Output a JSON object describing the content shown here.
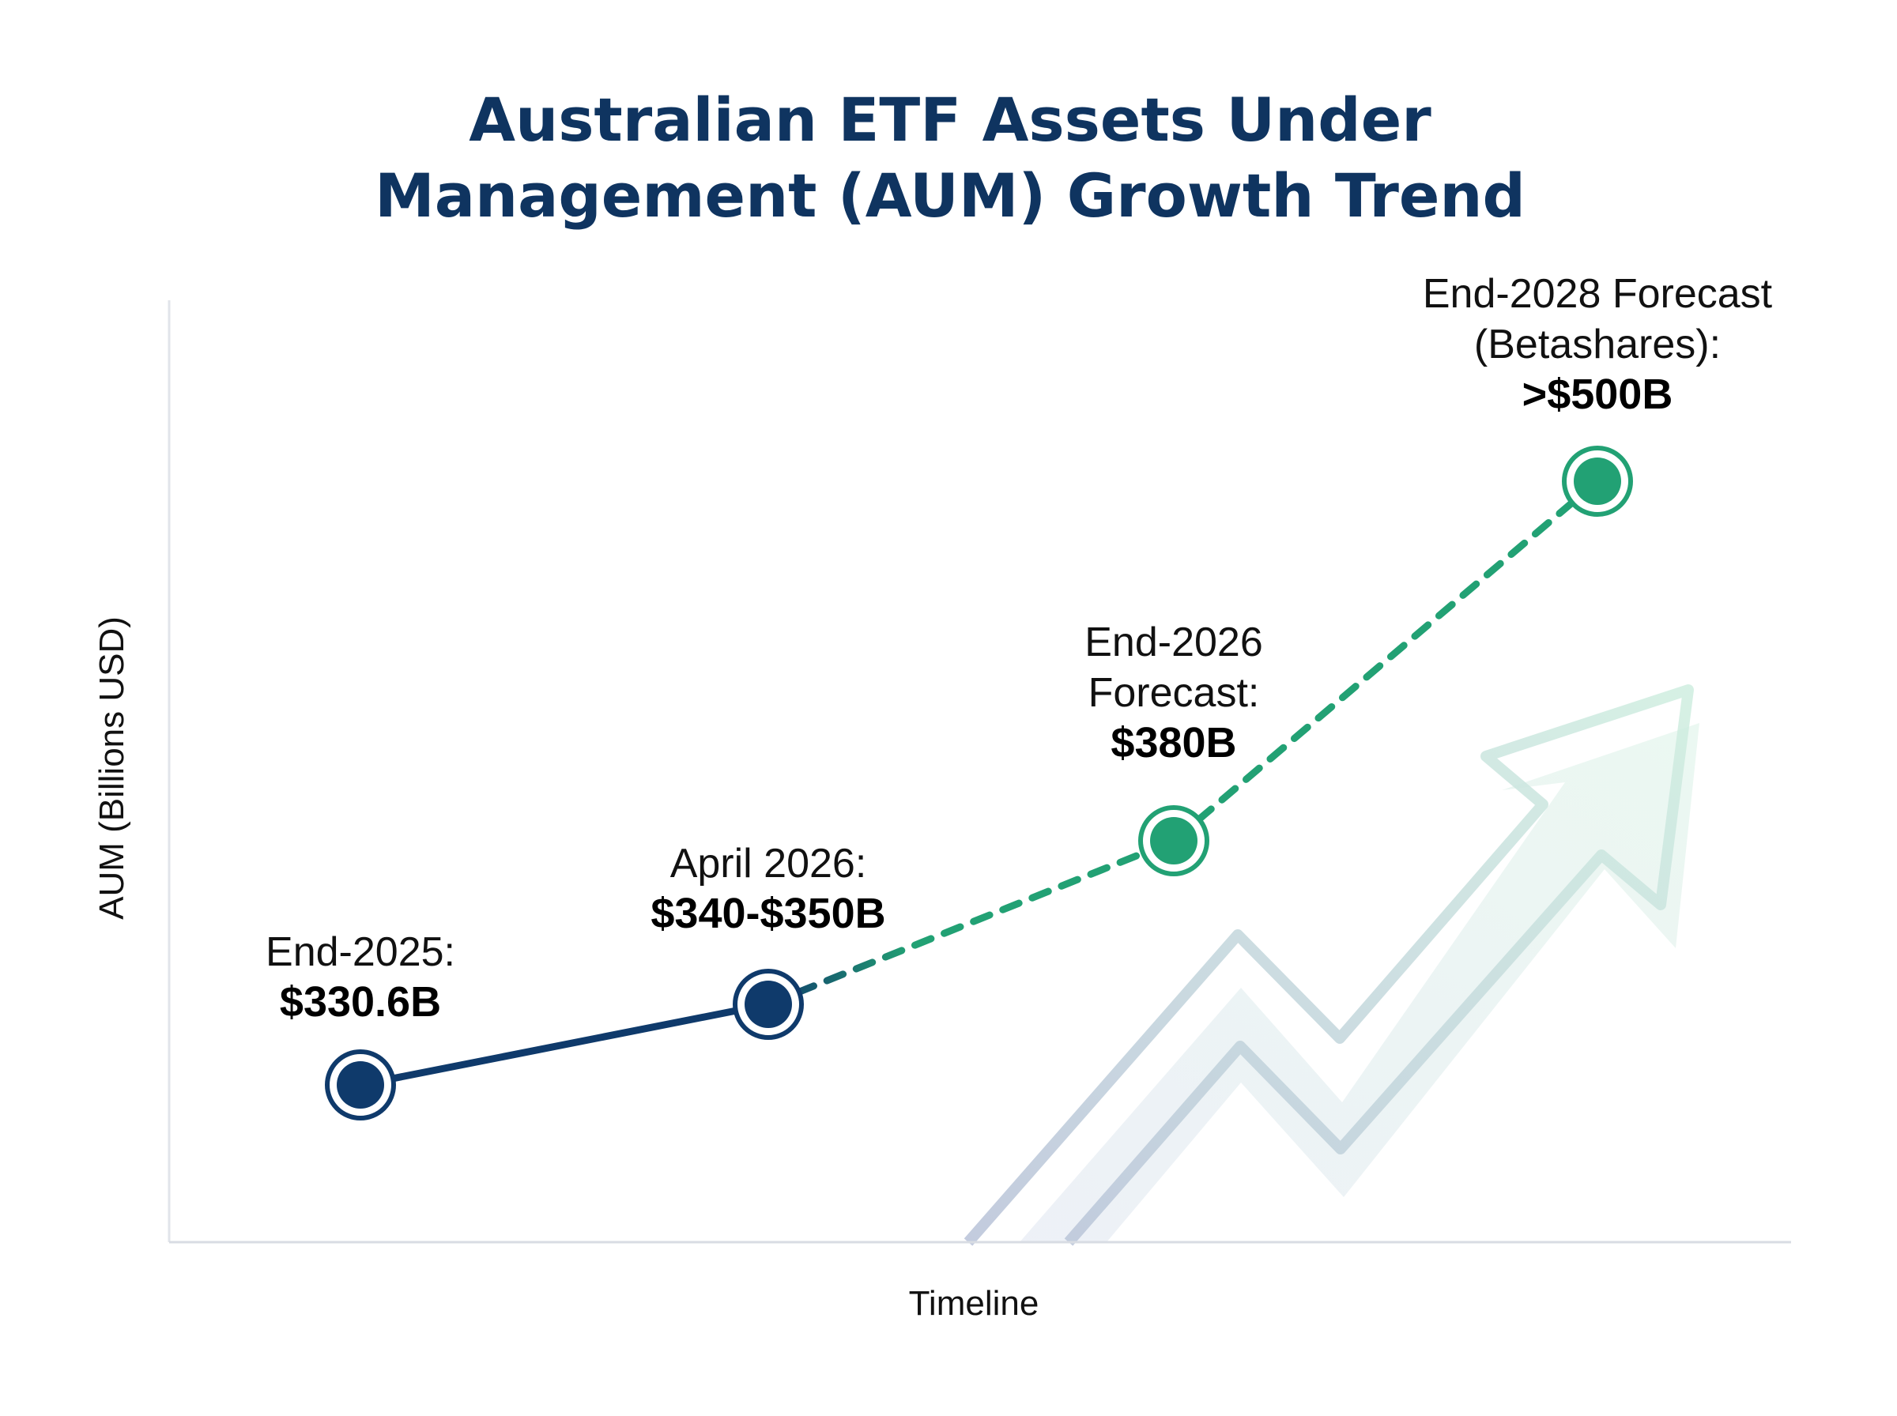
{
  "chart_data": {
    "type": "line",
    "title": "Australian ETF Assets Under Management (AUM) Growth Trend",
    "title_lines": [
      "Australian ETF Assets Under",
      "Management (AUM) Growth Trend"
    ],
    "xlabel": "Timeline",
    "ylabel": "AUM (Billions USD)",
    "grid": false,
    "points": [
      {
        "category": "End-2025",
        "value": 330.6,
        "label_lines": [
          "End-2025:"
        ],
        "value_label": "$330.6B",
        "kind": "actual"
      },
      {
        "category": "April 2026",
        "value": 345,
        "value_range": [
          340,
          350
        ],
        "label_lines": [
          "April 2026:"
        ],
        "value_label": "$340-$350B",
        "kind": "actual"
      },
      {
        "category": "End-2026 Forecast",
        "value": 380,
        "label_lines": [
          "End-2026",
          "Forecast:"
        ],
        "value_label": "$380B",
        "kind": "forecast"
      },
      {
        "category": "End-2028 Forecast (Betashares)",
        "value": 500,
        "value_note": "greater than",
        "label_lines": [
          "End-2028 Forecast",
          "(Betashares):"
        ],
        "value_label": ">$500B",
        "kind": "forecast"
      }
    ],
    "colors": {
      "actual": "#0f3a6b",
      "forecast": "#22a174",
      "title": "#0f3460",
      "axis": "#d8dce3"
    }
  }
}
